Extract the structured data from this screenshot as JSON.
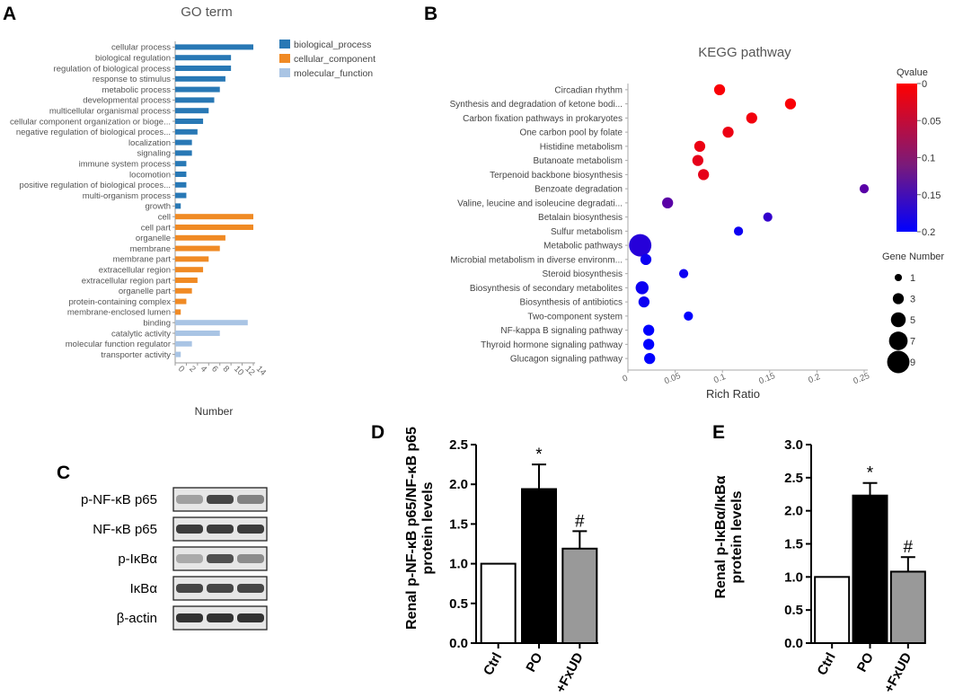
{
  "panels": {
    "A": "A",
    "B": "B",
    "C": "C",
    "D": "D",
    "E": "E"
  },
  "colors": {
    "biological_process": "#2878b5",
    "cellular_component": "#f08a24",
    "molecular_function": "#a9c4e4",
    "qvalue_high": "#ff0000",
    "qvalue_low": "#0000ff",
    "po_bar": "#000000",
    "fxud_bar": "#999999"
  },
  "chart_data": [
    {
      "id": "go",
      "type": "bar",
      "orientation": "horizontal",
      "title": "GO term",
      "xlabel": "Number",
      "xlim": [
        0,
        14
      ],
      "xticks": [
        "0",
        "2",
        "4",
        "6",
        "8",
        "10",
        "12",
        "14"
      ],
      "legend": [
        {
          "key": "biological_process",
          "label": "biological_process"
        },
        {
          "key": "cellular_component",
          "label": "cellular_component"
        },
        {
          "key": "molecular_function",
          "label": "molecular_function"
        }
      ],
      "items": [
        {
          "label": "cellular process",
          "value": 14,
          "group": "biological_process"
        },
        {
          "label": "biological regulation",
          "value": 10,
          "group": "biological_process"
        },
        {
          "label": "regulation of biological process",
          "value": 10,
          "group": "biological_process"
        },
        {
          "label": "response to stimulus",
          "value": 9,
          "group": "biological_process"
        },
        {
          "label": "metabolic process",
          "value": 8,
          "group": "biological_process"
        },
        {
          "label": "developmental process",
          "value": 7,
          "group": "biological_process"
        },
        {
          "label": "multicellular organismal process",
          "value": 6,
          "group": "biological_process"
        },
        {
          "label": "cellular component organization or bioge...",
          "value": 5,
          "group": "biological_process"
        },
        {
          "label": "negative regulation of biological proces...",
          "value": 4,
          "group": "biological_process"
        },
        {
          "label": "localization",
          "value": 3,
          "group": "biological_process"
        },
        {
          "label": "signaling",
          "value": 3,
          "group": "biological_process"
        },
        {
          "label": "immune system process",
          "value": 2,
          "group": "biological_process"
        },
        {
          "label": "locomotion",
          "value": 2,
          "group": "biological_process"
        },
        {
          "label": "positive regulation of biological proces...",
          "value": 2,
          "group": "biological_process"
        },
        {
          "label": "multi-organism process",
          "value": 2,
          "group": "biological_process"
        },
        {
          "label": "growth",
          "value": 1,
          "group": "biological_process"
        },
        {
          "label": "cell",
          "value": 14,
          "group": "cellular_component"
        },
        {
          "label": "cell part",
          "value": 14,
          "group": "cellular_component"
        },
        {
          "label": "organelle",
          "value": 9,
          "group": "cellular_component"
        },
        {
          "label": "membrane",
          "value": 8,
          "group": "cellular_component"
        },
        {
          "label": "membrane part",
          "value": 6,
          "group": "cellular_component"
        },
        {
          "label": "extracellular region",
          "value": 5,
          "group": "cellular_component"
        },
        {
          "label": "extracellular region part",
          "value": 4,
          "group": "cellular_component"
        },
        {
          "label": "organelle part",
          "value": 3,
          "group": "cellular_component"
        },
        {
          "label": "protein-containing complex",
          "value": 2,
          "group": "cellular_component"
        },
        {
          "label": "membrane-enclosed lumen",
          "value": 1,
          "group": "cellular_component"
        },
        {
          "label": "binding",
          "value": 13,
          "group": "molecular_function"
        },
        {
          "label": "catalytic activity",
          "value": 8,
          "group": "molecular_function"
        },
        {
          "label": "molecular function regulator",
          "value": 3,
          "group": "molecular_function"
        },
        {
          "label": "transporter activity",
          "value": 1,
          "group": "molecular_function"
        }
      ]
    },
    {
      "id": "kegg",
      "type": "scatter",
      "title": "KEGG pathway",
      "xlabel": "Rich Ratio",
      "xlim": [
        0,
        0.25
      ],
      "xticks": [
        "0",
        "0.05",
        "0.1",
        "0.15",
        "0.2",
        "0.25"
      ],
      "color_legend_title": "Qvalue",
      "color_ticks": [
        "0",
        "0.05",
        "0.1",
        "0.15",
        "0.2"
      ],
      "qlim": [
        0,
        0.2
      ],
      "size_legend_title": "Gene Number",
      "size_ticks": [
        "1",
        "3",
        "5",
        "7",
        "9"
      ],
      "points": [
        {
          "label": "Circadian rhythm",
          "x": 0.097,
          "q": 0.005,
          "genes": 3
        },
        {
          "label": "Synthesis and degradation of ketone bodi...",
          "x": 0.172,
          "q": 0.005,
          "genes": 3
        },
        {
          "label": "Carbon fixation pathways in prokaryotes",
          "x": 0.131,
          "q": 0.01,
          "genes": 3
        },
        {
          "label": "One carbon pool by folate",
          "x": 0.106,
          "q": 0.015,
          "genes": 3
        },
        {
          "label": "Histidine metabolism",
          "x": 0.076,
          "q": 0.015,
          "genes": 3
        },
        {
          "label": "Butanoate metabolism",
          "x": 0.074,
          "q": 0.02,
          "genes": 3
        },
        {
          "label": "Terpenoid backbone biosynthesis",
          "x": 0.08,
          "q": 0.02,
          "genes": 3
        },
        {
          "label": "Benzoate degradation",
          "x": 0.25,
          "q": 0.13,
          "genes": 2
        },
        {
          "label": "Valine, leucine and isoleucine degradati...",
          "x": 0.042,
          "q": 0.13,
          "genes": 3
        },
        {
          "label": "Betalain biosynthesis",
          "x": 0.148,
          "q": 0.16,
          "genes": 2
        },
        {
          "label": "Sulfur metabolism",
          "x": 0.117,
          "q": 0.19,
          "genes": 2
        },
        {
          "label": "Metabolic pathways",
          "x": 0.013,
          "q": 0.17,
          "genes": 9
        },
        {
          "label": "Microbial metabolism in diverse environm...",
          "x": 0.019,
          "q": 0.19,
          "genes": 3
        },
        {
          "label": "Steroid biosynthesis",
          "x": 0.059,
          "q": 0.19,
          "genes": 2
        },
        {
          "label": "Biosynthesis of secondary metabolites",
          "x": 0.015,
          "q": 0.19,
          "genes": 4
        },
        {
          "label": "Biosynthesis of antibiotics",
          "x": 0.017,
          "q": 0.19,
          "genes": 3
        },
        {
          "label": "Two-component system",
          "x": 0.064,
          "q": 0.2,
          "genes": 2
        },
        {
          "label": "NF-kappa B signaling pathway",
          "x": 0.022,
          "q": 0.2,
          "genes": 3
        },
        {
          "label": "Thyroid hormone signaling pathway",
          "x": 0.022,
          "q": 0.2,
          "genes": 3
        },
        {
          "label": "Glucagon signaling pathway",
          "x": 0.023,
          "q": 0.2,
          "genes": 3
        }
      ]
    },
    {
      "id": "barD",
      "type": "bar",
      "ylabel_line1": "Renal p-NF-κB p65/NF-κB p65",
      "ylabel_line2": "protein levels",
      "ylim": [
        0,
        2.5
      ],
      "yticks": [
        "0.0",
        "0.5",
        "1.0",
        "1.5",
        "2.0",
        "2.5"
      ],
      "categories": [
        "Ctrl",
        "PO",
        "+FxUD"
      ],
      "values": [
        1.0,
        1.94,
        1.19
      ],
      "errors": [
        0,
        0.31,
        0.22
      ],
      "annotations": [
        "",
        "*",
        "#"
      ]
    },
    {
      "id": "barE",
      "type": "bar",
      "ylabel_line1": "Renal p-IκBα/IκBα",
      "ylabel_line2": "protein levels",
      "ylim": [
        0,
        3.0
      ],
      "yticks": [
        "0.0",
        "0.5",
        "1.0",
        "1.5",
        "2.0",
        "2.5",
        "3.0"
      ],
      "categories": [
        "Ctrl",
        "PO",
        "+FxUD"
      ],
      "values": [
        1.0,
        2.23,
        1.08
      ],
      "errors": [
        0,
        0.19,
        0.22
      ],
      "annotations": [
        "",
        "*",
        "#"
      ]
    }
  ],
  "western_blot": {
    "rows": [
      "p-NF-κB p65",
      "NF-κB p65",
      "p-IκBα",
      "IκBα",
      "β-actin"
    ],
    "intensity": [
      [
        0.35,
        0.8,
        0.5
      ],
      [
        0.85,
        0.85,
        0.85
      ],
      [
        0.3,
        0.75,
        0.45
      ],
      [
        0.8,
        0.8,
        0.8
      ],
      [
        0.9,
        0.9,
        0.9
      ]
    ]
  }
}
